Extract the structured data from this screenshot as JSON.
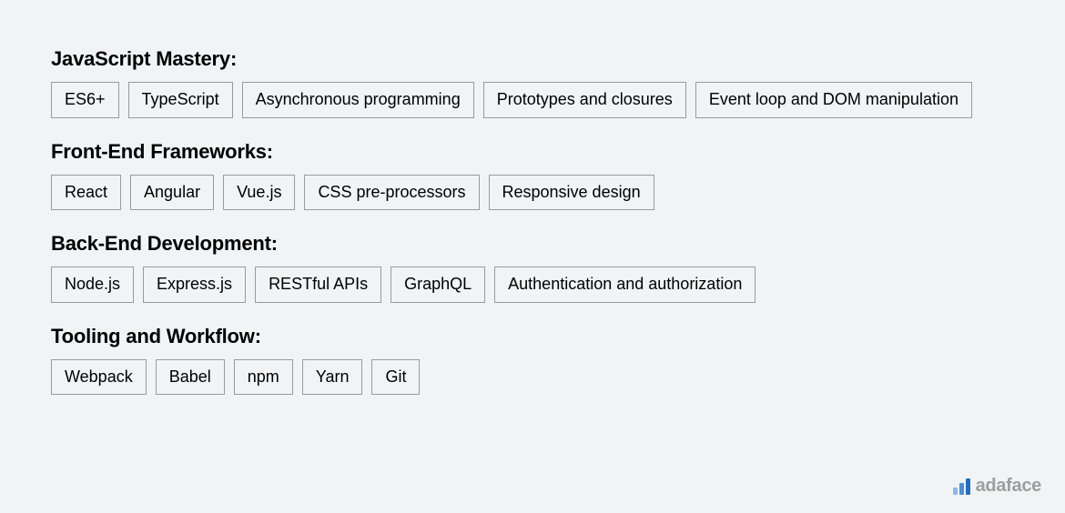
{
  "styles": {
    "background_color": "#f2f3f4",
    "text_color": "#000000",
    "tag_border_color": "#9a9a9a",
    "tag_padding": "8px 14px",
    "tag_fontsize": 18,
    "title_fontsize": 22,
    "title_fontweight": 700,
    "gap": 10
  },
  "sections": [
    {
      "title": "JavaScript Mastery:",
      "tags": [
        "ES6+",
        "TypeScript",
        "Asynchronous programming",
        "Prototypes and closures",
        "Event loop and DOM manipulation"
      ]
    },
    {
      "title": "Front-End Frameworks:",
      "tags": [
        "React",
        "Angular",
        "Vue.js",
        "CSS pre-processors",
        "Responsive design"
      ]
    },
    {
      "title": "Back-End Development:",
      "tags": [
        "Node.js",
        "Express.js",
        "RESTful APIs",
        "GraphQL",
        "Authentication and authorization"
      ]
    },
    {
      "title": "Tooling and Workflow:",
      "tags": [
        "Webpack",
        "Babel",
        "npm",
        "Yarn",
        "Git"
      ]
    }
  ],
  "logo": {
    "text": "adaface",
    "bar_colors": [
      "#8fb9e6",
      "#4a90d9",
      "#1f6fc2"
    ],
    "text_color": "#9e9e9e"
  }
}
